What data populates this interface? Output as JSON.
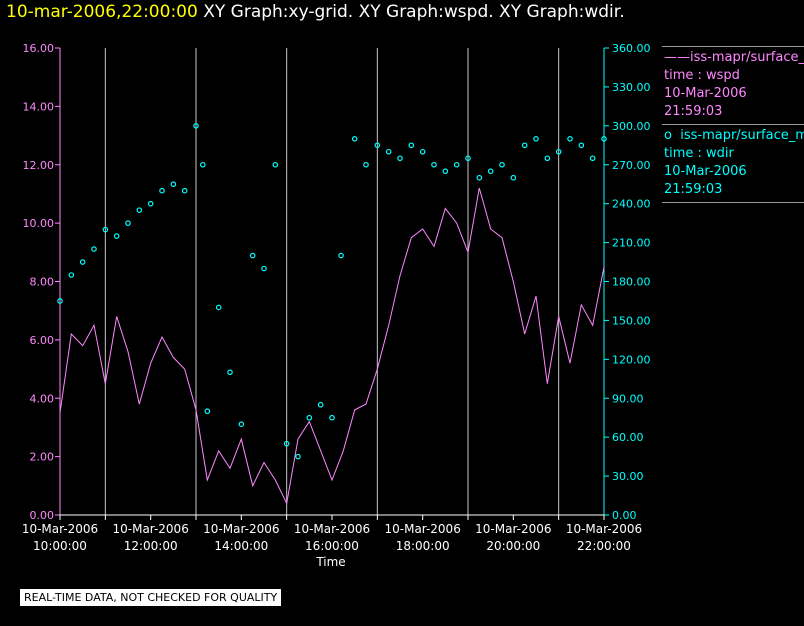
{
  "title": {
    "time": "10-mar-2006,22:00:00",
    "graphs": "XY Graph:xy-grid.  XY Graph:wspd.  XY Graph:wdir."
  },
  "legend": {
    "wspd": {
      "symbol": "——",
      "series": "iss-mapr/surface_met",
      "line1": "time : wspd",
      "line2": "10-Mar-2006",
      "line3": "21:59:03"
    },
    "wdir": {
      "symbol": "o",
      "series": "iss-mapr/surface_met",
      "line1": "time : wdir",
      "line2": "10-Mar-2006",
      "line3": "21:59:03"
    }
  },
  "notice": "REAL-TIME DATA, NOT CHECKED FOR QUALITY",
  "colors": {
    "wspd": "#ff88ff",
    "wdir": "#00ffff",
    "axis_left": "#ff88ff",
    "axis_right": "#00ffff",
    "grid": "#c8c8c8",
    "title_time": "#ffff00"
  },
  "chart_data": {
    "type": "line",
    "xlabel": "Time",
    "x_ticks": [
      "10-Mar-2006 10:00:00",
      "10-Mar-2006 12:00:00",
      "10-Mar-2006 14:00:00",
      "10-Mar-2006 16:00:00",
      "10-Mar-2006 18:00:00",
      "10-Mar-2006 20:00:00",
      "10-Mar-2006 22:00:00"
    ],
    "x_tick_lines": [
      [
        "10-Mar-2006",
        "10:00:00"
      ],
      [
        "10-Mar-2006",
        "12:00:00"
      ],
      [
        "10-Mar-2006",
        "14:00:00"
      ],
      [
        "10-Mar-2006",
        "16:00:00"
      ],
      [
        "10-Mar-2006",
        "18:00:00"
      ],
      [
        "10-Mar-2006",
        "20:00:00"
      ],
      [
        "10-Mar-2006",
        "22:00:00"
      ]
    ],
    "xlim_hours": [
      10.0,
      22.0
    ],
    "y_left": {
      "label": "wspd",
      "ylim": [
        0,
        16
      ],
      "ticks": [
        "0.00",
        "2.00",
        "4.00",
        "6.00",
        "8.00",
        "10.00",
        "12.00",
        "14.00",
        "16.00"
      ]
    },
    "y_right": {
      "label": "wdir",
      "ylim": [
        0,
        360
      ],
      "ticks": [
        "0.00",
        "30.00",
        "60.00",
        "90.00",
        "120.00",
        "150.00",
        "180.00",
        "210.00",
        "240.00",
        "270.00",
        "300.00",
        "330.00",
        "360.00"
      ]
    },
    "grid": true,
    "series": [
      {
        "name": "wspd",
        "axis": "left",
        "style": "line",
        "x": [
          10.0,
          10.25,
          10.5,
          10.75,
          11.0,
          11.25,
          11.5,
          11.75,
          12.0,
          12.25,
          12.5,
          12.75,
          13.0,
          13.25,
          13.5,
          13.75,
          14.0,
          14.25,
          14.5,
          14.75,
          15.0,
          15.25,
          15.5,
          15.75,
          16.0,
          16.25,
          16.5,
          16.75,
          17.0,
          17.25,
          17.5,
          17.75,
          18.0,
          18.25,
          18.5,
          18.75,
          19.0,
          19.25,
          19.5,
          19.75,
          20.0,
          20.25,
          20.5,
          20.75,
          21.0,
          21.25,
          21.5,
          21.75,
          22.0
        ],
        "y": [
          3.5,
          6.2,
          5.8,
          6.5,
          4.5,
          6.8,
          5.6,
          3.8,
          5.2,
          6.1,
          5.4,
          5.0,
          3.6,
          1.2,
          2.2,
          1.6,
          2.6,
          1.0,
          1.8,
          1.2,
          0.4,
          2.6,
          3.2,
          2.2,
          1.2,
          2.2,
          3.6,
          3.8,
          5.0,
          6.5,
          8.2,
          9.5,
          9.8,
          9.2,
          10.5,
          10.0,
          9.0,
          11.2,
          9.8,
          9.5,
          8.0,
          6.2,
          7.5,
          4.5,
          6.8,
          5.2,
          7.2,
          6.5,
          8.5
        ]
      },
      {
        "name": "wdir",
        "axis": "right",
        "style": "scatter",
        "x": [
          10.0,
          10.25,
          10.5,
          10.75,
          11.0,
          11.25,
          11.5,
          11.75,
          12.0,
          12.25,
          12.5,
          12.75,
          13.0,
          13.15,
          13.25,
          13.5,
          13.75,
          14.0,
          14.25,
          14.5,
          14.75,
          15.0,
          15.25,
          15.5,
          15.75,
          16.0,
          16.2,
          16.5,
          16.75,
          17.0,
          17.25,
          17.5,
          17.75,
          18.0,
          18.25,
          18.5,
          18.75,
          19.0,
          19.25,
          19.5,
          19.75,
          20.0,
          20.25,
          20.5,
          20.75,
          21.0,
          21.25,
          21.5,
          21.75,
          22.0
        ],
        "y": [
          165,
          185,
          195,
          205,
          220,
          215,
          225,
          235,
          240,
          250,
          255,
          250,
          300,
          270,
          80,
          160,
          110,
          70,
          200,
          190,
          270,
          55,
          45,
          75,
          85,
          75,
          200,
          290,
          270,
          285,
          280,
          275,
          285,
          280,
          270,
          265,
          270,
          275,
          260,
          265,
          270,
          260,
          285,
          290,
          275,
          280,
          290,
          285,
          275,
          290
        ]
      }
    ]
  }
}
